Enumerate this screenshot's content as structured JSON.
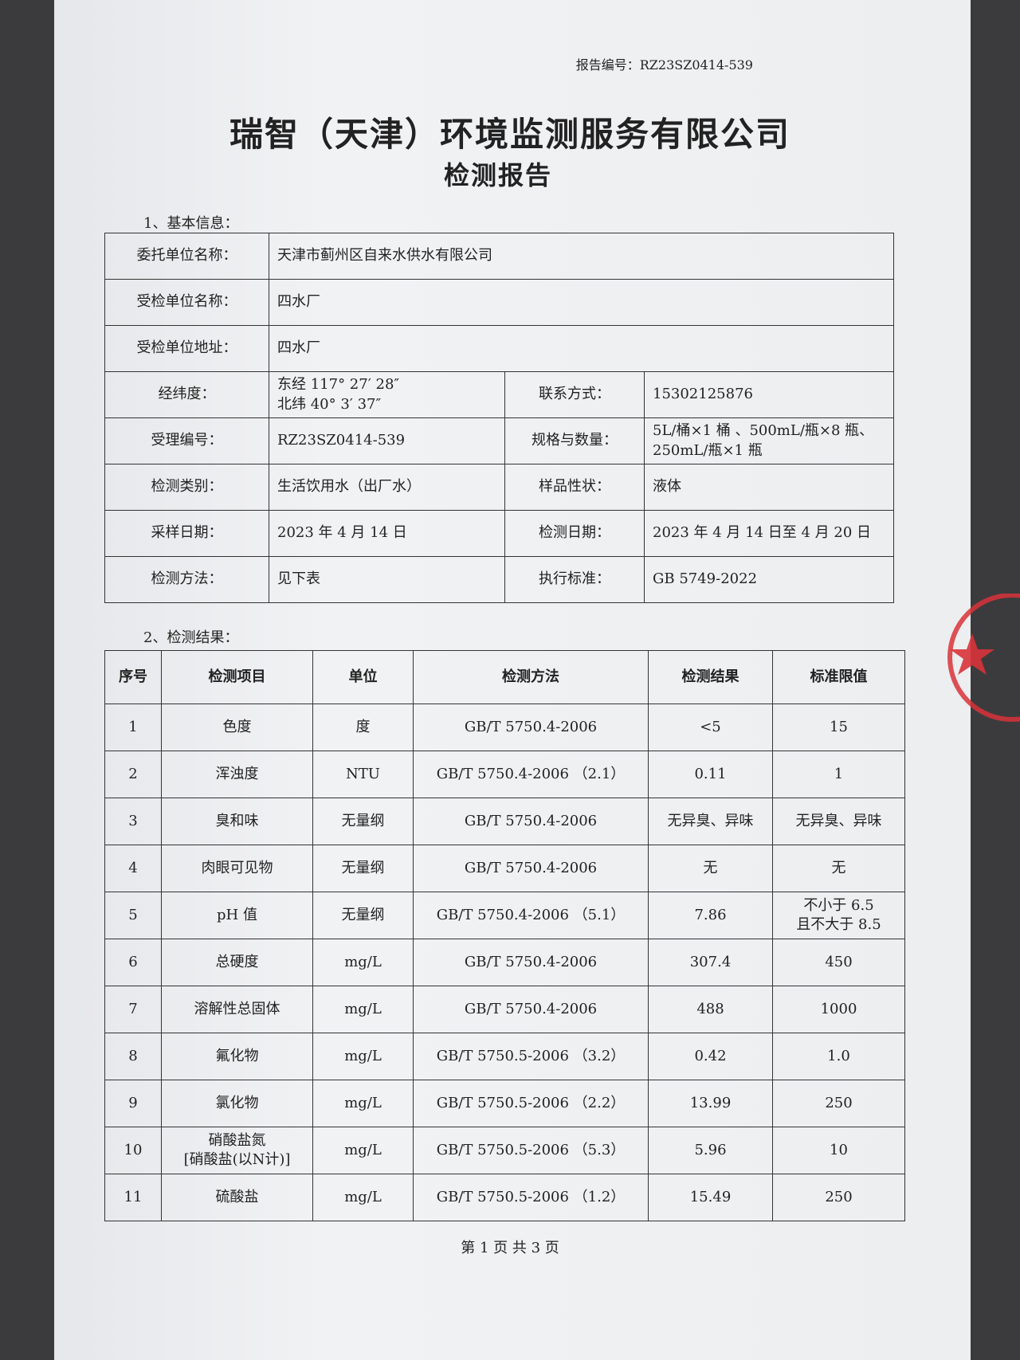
{
  "header": {
    "report_no": "报告编号：RZ23SZ0414-539",
    "company": "瑞智（天津）环境监测服务有限公司",
    "title": "检测报告"
  },
  "basic_info": {
    "heading": "1、基本信息：",
    "rows": [
      [
        "委托单位名称：",
        "天津市蓟州区自来水供水有限公司"
      ],
      [
        "受检单位名称：",
        "四水厂"
      ],
      [
        "受检单位地址：",
        "四水厂"
      ],
      [
        "经纬度：",
        "东经 117° 27′ 28″\n北纬 40° 3′ 37″",
        "联系方式：",
        "15302125876"
      ],
      [
        "受理编号：",
        "RZ23SZ0414-539",
        "规格与数量：",
        "5L/桶×1 桶 、500mL/瓶×8 瓶、\n250mL/瓶×1 瓶"
      ],
      [
        "检测类别：",
        "生活饮用水（出厂水）",
        "样品性状：",
        "液体"
      ],
      [
        "采样日期：",
        "2023 年 4 月 14 日",
        "检测日期：",
        "2023 年 4 月 14 日至 4 月 20 日"
      ],
      [
        "检测方法：",
        "见下表",
        "执行标准：",
        "GB 5749-2022"
      ]
    ]
  },
  "results": {
    "heading": "2、检测结果：",
    "columns": [
      "序号",
      "检测项目",
      "单位",
      "检测方法",
      "检测结果",
      "标准限值"
    ],
    "rows": [
      [
        "1",
        "色度",
        "度",
        "GB/T 5750.4-2006",
        "<5",
        "15"
      ],
      [
        "2",
        "浑浊度",
        "NTU",
        "GB/T 5750.4-2006 （2.1）",
        "0.11",
        "1"
      ],
      [
        "3",
        "臭和味",
        "无量纲",
        "GB/T 5750.4-2006",
        "无异臭、异味",
        "无异臭、异味"
      ],
      [
        "4",
        "肉眼可见物",
        "无量纲",
        "GB/T 5750.4-2006",
        "无",
        "无"
      ],
      [
        "5",
        "pH 值",
        "无量纲",
        "GB/T 5750.4-2006 （5.1）",
        "7.86",
        "不小于 6.5\n且不大于 8.5"
      ],
      [
        "6",
        "总硬度",
        "mg/L",
        "GB/T 5750.4-2006",
        "307.4",
        "450"
      ],
      [
        "7",
        "溶解性总固体",
        "mg/L",
        "GB/T 5750.4-2006",
        "488",
        "1000"
      ],
      [
        "8",
        "氟化物",
        "mg/L",
        "GB/T 5750.5-2006 （3.2）",
        "0.42",
        "1.0"
      ],
      [
        "9",
        "氯化物",
        "mg/L",
        "GB/T 5750.5-2006 （2.2）",
        "13.99",
        "250"
      ],
      [
        "10",
        "硝酸盐氮\n[硝酸盐(以N计)]",
        "mg/L",
        "GB/T 5750.5-2006 （5.3）",
        "5.96",
        "10"
      ],
      [
        "11",
        "硫酸盐",
        "mg/L",
        "GB/T 5750.5-2006 （1.2）",
        "15.49",
        "250"
      ]
    ]
  },
  "footer": {
    "page": "第 1 页 共 3 页"
  }
}
